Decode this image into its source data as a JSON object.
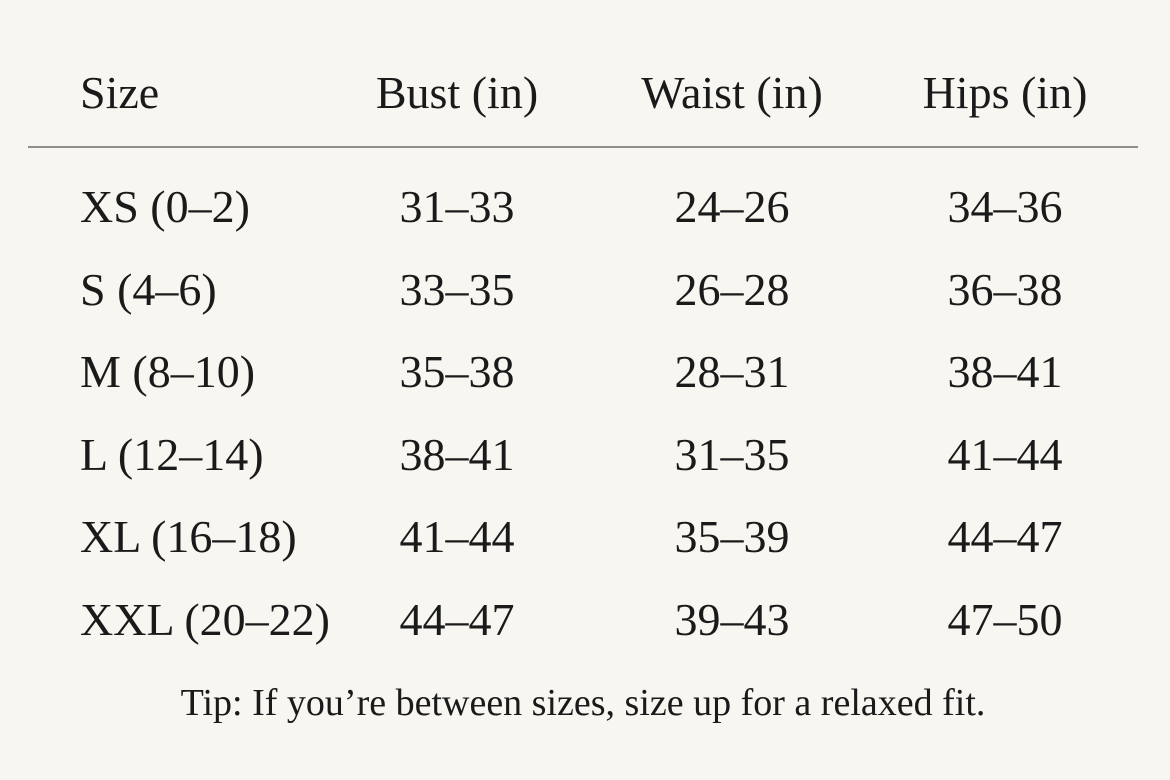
{
  "page": {
    "background_color": "#f8f6f1",
    "text_color": "#1a1a1a",
    "rule_color": "#8e8e8e"
  },
  "size_chart": {
    "columns": [
      "Size",
      "Bust (in)",
      "Waist (in)",
      "Hips (in)"
    ],
    "rows": [
      {
        "size": "XS (0–2)",
        "bust": "31–33",
        "waist": "24–26",
        "hips": "34–36"
      },
      {
        "size": "S (4–6)",
        "bust": "33–35",
        "waist": "26–28",
        "hips": "36–38"
      },
      {
        "size": "M (8–10)",
        "bust": "35–38",
        "waist": "28–31",
        "hips": "38–41"
      },
      {
        "size": "L (12–14)",
        "bust": "38–41",
        "waist": "31–35",
        "hips": "41–44"
      },
      {
        "size": "XL (16–18)",
        "bust": "41–44",
        "waist": "35–39",
        "hips": "44–47"
      },
      {
        "size": "XXL (20–22)",
        "bust": "44–47",
        "waist": "39–43",
        "hips": "47–50"
      }
    ],
    "tip": "Tip: If you’re between sizes, size up for a relaxed fit."
  }
}
